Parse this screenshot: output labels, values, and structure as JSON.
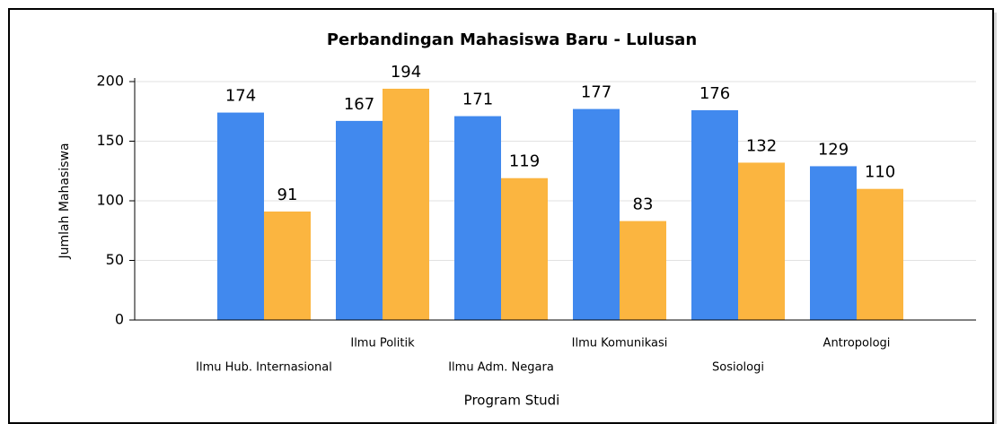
{
  "chart_data": {
    "type": "bar",
    "title": "Perbandingan Mahasiswa Baru - Lulusan",
    "x_label": "Program Studi",
    "y_label": "Jumlah Mahasiswa",
    "categories": [
      "Ilmu Hub. Internasional",
      "Ilmu Politik",
      "Ilmu Adm. Negara",
      "Ilmu Komunikasi",
      "Sosiologi",
      "Antropologi"
    ],
    "series": [
      {
        "color": "#4189ee",
        "values": [
          174,
          167,
          171,
          177,
          176,
          129
        ]
      },
      {
        "color": "#fbb540",
        "values": [
          91,
          194,
          119,
          83,
          132,
          110
        ]
      }
    ],
    "ylim": [
      0,
      200
    ],
    "yticks": [
      0,
      50,
      100,
      150,
      200
    ],
    "grid": true
  }
}
